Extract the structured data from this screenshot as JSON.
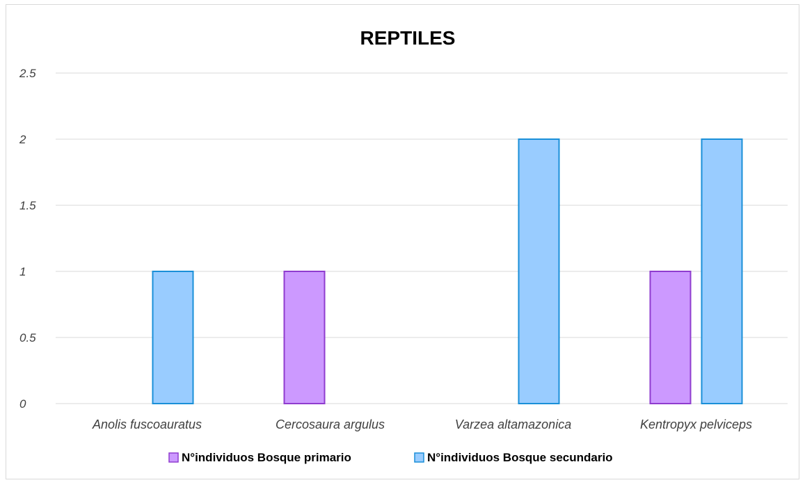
{
  "chart_data": {
    "type": "bar",
    "title": "REPTILES",
    "xlabel": "",
    "ylabel": "",
    "categories": [
      "Anolis fuscoauratus",
      "Cercosaura argulus",
      "Varzea altamazonica",
      "Kentropyx pelviceps"
    ],
    "series": [
      {
        "name": "N°individuos Bosque primario",
        "values": [
          0,
          1,
          0,
          1
        ],
        "color": "#cc99ff",
        "stroke": "#8f3ccf"
      },
      {
        "name": "N°individuos Bosque secundario",
        "values": [
          1,
          0,
          2,
          2
        ],
        "color": "#99ccff",
        "stroke": "#1a8fd8"
      }
    ],
    "ylim": [
      0,
      2.5
    ],
    "yticks": [
      "0",
      "0.5",
      "1",
      "1.5",
      "2",
      "2.5"
    ],
    "ytick_values": [
      0,
      0.5,
      1,
      1.5,
      2,
      2.5
    ],
    "grid": true,
    "legend_position": "bottom"
  }
}
